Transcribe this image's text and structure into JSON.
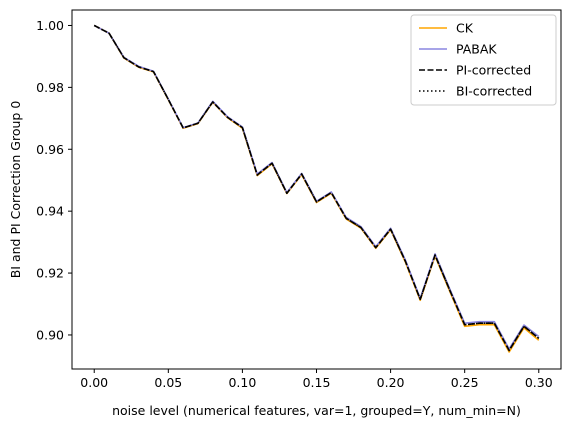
{
  "chart_data": {
    "type": "line",
    "xlabel": "noise level (numerical features, var=1, grouped=Y, num_min=N)",
    "ylabel": "BI and PI Correction Group 0",
    "xlim": [
      -0.015,
      0.315
    ],
    "ylim": [
      0.889,
      1.005
    ],
    "x_ticks": [
      0.0,
      0.05,
      0.1,
      0.15,
      0.2,
      0.25,
      0.3
    ],
    "x_tick_labels": [
      "0.00",
      "0.05",
      "0.10",
      "0.15",
      "0.20",
      "0.25",
      "0.30"
    ],
    "y_ticks": [
      0.9,
      0.92,
      0.94,
      0.96,
      0.98,
      1.0
    ],
    "y_tick_labels": [
      "0.90",
      "0.92",
      "0.94",
      "0.96",
      "0.98",
      "1.00"
    ],
    "grid": false,
    "legend_position": "top-right",
    "x": [
      0.0,
      0.01,
      0.02,
      0.03,
      0.04,
      0.05,
      0.06,
      0.07,
      0.08,
      0.09,
      0.1,
      0.11,
      0.12,
      0.13,
      0.14,
      0.15,
      0.16,
      0.17,
      0.18,
      0.19,
      0.2,
      0.21,
      0.22,
      0.23,
      0.24,
      0.25,
      0.26,
      0.27,
      0.28,
      0.29,
      0.3
    ],
    "series": [
      {
        "name": "CK",
        "color": "#ffa500",
        "style": "solid",
        "values": [
          1.0,
          0.9975,
          0.9895,
          0.9865,
          0.985,
          0.976,
          0.9668,
          0.9683,
          0.9752,
          0.9702,
          0.9668,
          0.9515,
          0.9553,
          0.9457,
          0.9518,
          0.9428,
          0.9458,
          0.9375,
          0.9345,
          0.928,
          0.934,
          0.9235,
          0.9112,
          0.9255,
          0.914,
          0.9028,
          0.9033,
          0.9033,
          0.8945,
          0.9023,
          0.8983
        ]
      },
      {
        "name": "PABAK",
        "color": "#8a86e0",
        "style": "solid",
        "values": [
          1.0,
          0.9975,
          0.9897,
          0.9868,
          0.9852,
          0.9762,
          0.967,
          0.9685,
          0.9755,
          0.9705,
          0.9672,
          0.952,
          0.9557,
          0.946,
          0.9522,
          0.9432,
          0.9462,
          0.938,
          0.935,
          0.9285,
          0.9345,
          0.9242,
          0.9118,
          0.9262,
          0.9148,
          0.9038,
          0.9043,
          0.9043,
          0.8955,
          0.9032,
          0.8995
        ]
      },
      {
        "name": "PI-corrected",
        "color": "#000000",
        "style": "dashed",
        "values": [
          1.0,
          0.9975,
          0.9896,
          0.9866,
          0.9851,
          0.9761,
          0.9669,
          0.9684,
          0.9753,
          0.9703,
          0.967,
          0.9517,
          0.9555,
          0.9458,
          0.952,
          0.943,
          0.946,
          0.9377,
          0.9347,
          0.9282,
          0.9342,
          0.9238,
          0.9115,
          0.9258,
          0.9144,
          0.9033,
          0.9038,
          0.9038,
          0.895,
          0.9028,
          0.8989
        ]
      },
      {
        "name": "BI-corrected",
        "color": "#000000",
        "style": "dotted",
        "values": [
          1.0,
          0.9975,
          0.9896,
          0.9866,
          0.9851,
          0.9761,
          0.9669,
          0.9684,
          0.9753,
          0.9703,
          0.967,
          0.9517,
          0.9555,
          0.9458,
          0.952,
          0.943,
          0.946,
          0.9377,
          0.9347,
          0.9282,
          0.9342,
          0.9238,
          0.9115,
          0.9258,
          0.9144,
          0.9033,
          0.9038,
          0.9038,
          0.895,
          0.9028,
          0.8989
        ]
      }
    ]
  }
}
